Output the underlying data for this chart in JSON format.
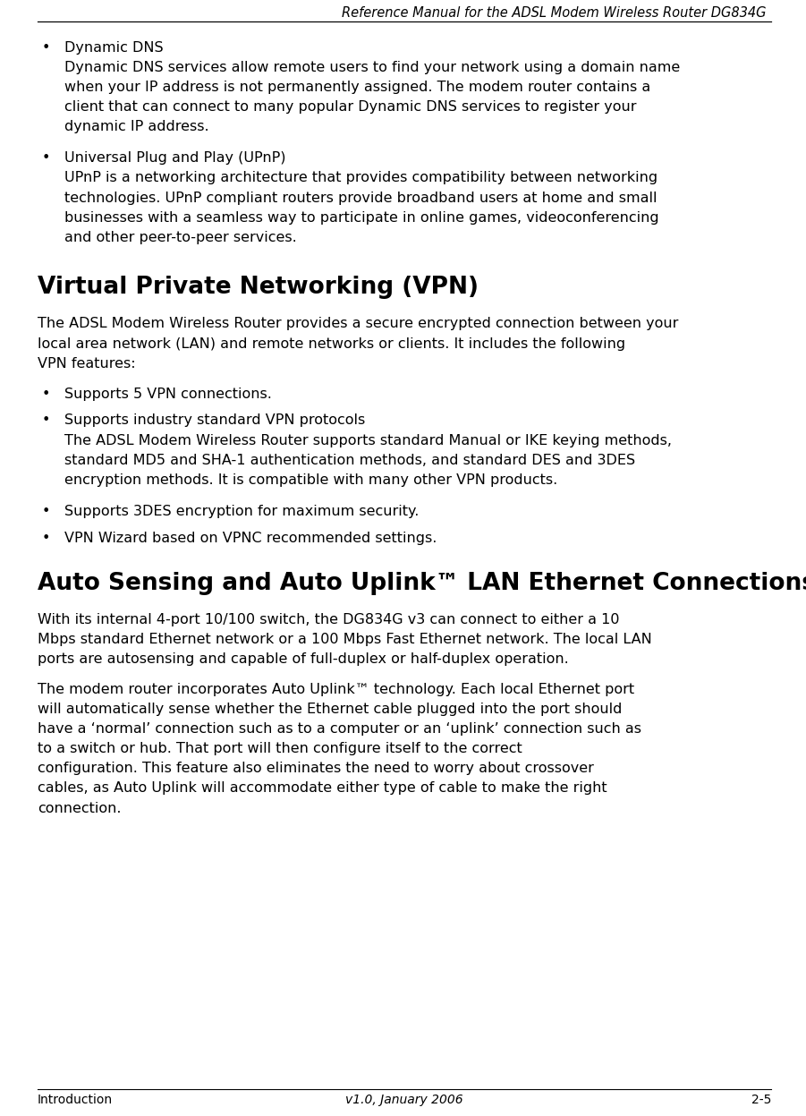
{
  "header_text": "Reference Manual for the ADSL Modem Wireless Router DG834G",
  "footer_left": "Introduction",
  "footer_right": "2-5",
  "footer_center": "v1.0, January 2006",
  "background_color": "#ffffff",
  "text_color": "#000000",
  "header_font_size": 10.5,
  "body_font_size": 11.5,
  "heading_font_size": 19,
  "content": [
    {
      "type": "bullet",
      "title": "Dynamic DNS",
      "body": "Dynamic DNS services allow remote users to find your network using a domain name when your IP address is not permanently assigned. The modem router contains a client that can connect to many popular Dynamic DNS services to register your dynamic IP address."
    },
    {
      "type": "bullet",
      "title": "Universal Plug and Play (UPnP)",
      "body": "UPnP is a networking architecture that provides compatibility between networking technologies. UPnP compliant routers provide broadband users at home and small businesses with a seamless way to participate in online games, videoconferencing and other peer-to-peer services."
    },
    {
      "type": "heading",
      "text": "Virtual Private Networking (VPN)"
    },
    {
      "type": "paragraph",
      "text": "The ADSL Modem Wireless Router provides a secure encrypted connection between your local area network (LAN) and remote networks or clients. It includes the following VPN features:"
    },
    {
      "type": "bullet_simple",
      "text": "Supports 5 VPN connections."
    },
    {
      "type": "bullet",
      "title": "Supports industry standard VPN protocols",
      "body": "The ADSL Modem Wireless Router supports standard Manual or IKE keying methods, standard MD5 and SHA-1 authentication methods, and standard DES and 3DES encryption methods. It is compatible with many other VPN products."
    },
    {
      "type": "bullet_simple",
      "text": "Supports 3DES encryption for maximum security."
    },
    {
      "type": "bullet_simple",
      "text": "VPN Wizard based on VPNC recommended settings."
    },
    {
      "type": "heading",
      "text": "Auto Sensing and Auto Uplink™ LAN Ethernet Connections"
    },
    {
      "type": "paragraph",
      "text": "With its internal 4-port 10/100 switch, the DG834G v3 can connect to either a 10 Mbps standard Ethernet network or a 100 Mbps Fast Ethernet network. The local LAN ports are autosensing and capable of full-duplex or half-duplex operation."
    },
    {
      "type": "paragraph",
      "text": "The modem router incorporates Auto Uplink™ technology. Each local Ethernet port will automatically sense whether the Ethernet cable plugged into the port should have a ‘normal’ connection such as to a computer or an ‘uplink’ connection such as to a switch or hub. That port will then configure itself to the correct configuration. This feature also eliminates the need to worry about crossover cables, as Auto Uplink will accommodate either type of cable to make the right connection."
    }
  ]
}
